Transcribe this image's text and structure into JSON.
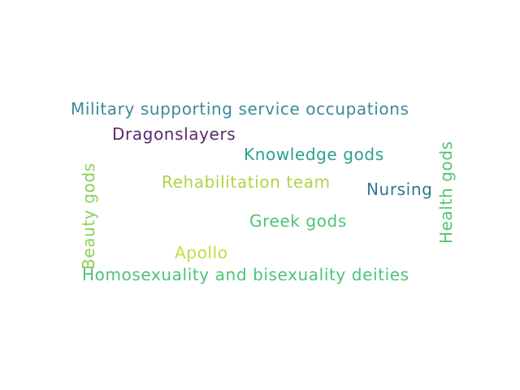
{
  "words": [
    {
      "text": "Military supporting service occupations",
      "color": "#3b8a99"
    },
    {
      "text": "Dragonslayers",
      "color": "#582a6c"
    },
    {
      "text": "Knowledge gods",
      "color": "#2e9f8c"
    },
    {
      "text": "Rehabilitation team",
      "color": "#b0d445"
    },
    {
      "text": "Nursing",
      "color": "#33778e"
    },
    {
      "text": "Greek gods",
      "color": "#4fc376"
    },
    {
      "text": "Apollo",
      "color": "#c2dc3c"
    },
    {
      "text": "Homosexuality and bisexuality deities",
      "color": "#4cc27a"
    },
    {
      "text": "Beauty gods",
      "color": "#8bd05a",
      "orientation": "vertical"
    },
    {
      "text": "Health gods",
      "color": "#55c46f",
      "orientation": "vertical"
    }
  ]
}
